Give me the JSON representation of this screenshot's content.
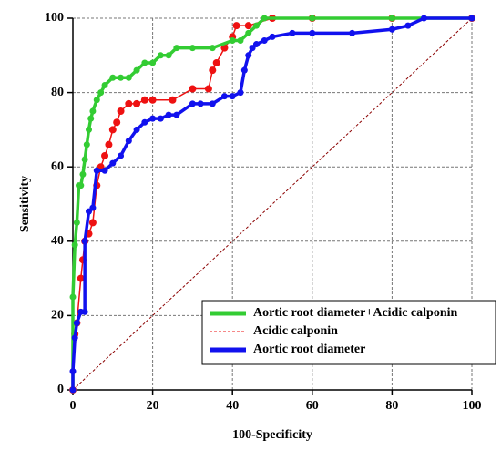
{
  "chart_data": {
    "type": "line",
    "xlabel": "100-Specificity",
    "ylabel": "Sensitivity",
    "xlim": [
      0,
      100
    ],
    "ylim": [
      0,
      100
    ],
    "xticks": [
      0,
      20,
      40,
      60,
      80,
      100
    ],
    "yticks": [
      0,
      20,
      40,
      60,
      80,
      100
    ],
    "grid": true,
    "legend": "lower right",
    "reference_line": {
      "color": "#8b0000",
      "x": [
        0,
        100
      ],
      "y": [
        0,
        100
      ]
    },
    "series": [
      {
        "name": "Aortic root diameter+Acidic calponin",
        "color": "#33cc33",
        "width": 5,
        "dash": false,
        "x": [
          0,
          0,
          0.5,
          1,
          1.5,
          2,
          2.5,
          3,
          3.5,
          4,
          4.5,
          5,
          6,
          7,
          8,
          10,
          12,
          14,
          16,
          18,
          20,
          22,
          24,
          26,
          30,
          35,
          40,
          42,
          44,
          46,
          48,
          60,
          80,
          100
        ],
        "values": [
          0,
          25,
          39,
          45,
          55,
          55,
          58,
          62,
          66,
          70,
          73,
          75,
          78,
          80,
          82,
          84,
          84,
          84,
          86,
          88,
          88,
          90,
          90,
          92,
          92,
          92,
          94,
          94,
          96,
          98,
          100,
          100,
          100,
          100
        ]
      },
      {
        "name": "Acidic calponin",
        "color": "#ee1111",
        "width": 1,
        "dash": true,
        "x": [
          0,
          0.5,
          1,
          2,
          2.5,
          3,
          4,
          5,
          6,
          7,
          8,
          9,
          10,
          11,
          12,
          14,
          16,
          18,
          20,
          25,
          30,
          34,
          35,
          36,
          38,
          40,
          41,
          44,
          50,
          60,
          80,
          100
        ],
        "values": [
          0,
          15,
          18,
          30,
          35,
          40,
          42,
          45,
          55,
          60,
          63,
          66,
          70,
          72,
          75,
          77,
          77,
          78,
          78,
          78,
          81,
          81,
          86,
          88,
          92,
          95,
          98,
          98,
          100,
          100,
          100,
          100
        ]
      },
      {
        "name": "Aortic root diameter",
        "color": "#1111ee",
        "width": 5,
        "dash": false,
        "x": [
          0,
          0,
          0.5,
          1,
          2,
          3,
          3,
          4,
          5,
          6,
          8,
          10,
          12,
          14,
          16,
          18,
          20,
          22,
          24,
          26,
          30,
          32,
          35,
          38,
          40,
          42,
          43,
          44,
          45,
          46,
          48,
          50,
          55,
          60,
          70,
          80,
          84,
          88,
          100
        ],
        "values": [
          0,
          5,
          14,
          18,
          21,
          21,
          40,
          48,
          49,
          59,
          59,
          61,
          63,
          67,
          70,
          72,
          73,
          73,
          74,
          74,
          77,
          77,
          77,
          79,
          79,
          80,
          86,
          90,
          92,
          93,
          94,
          95,
          96,
          96,
          96,
          97,
          98,
          100,
          100
        ]
      }
    ]
  }
}
